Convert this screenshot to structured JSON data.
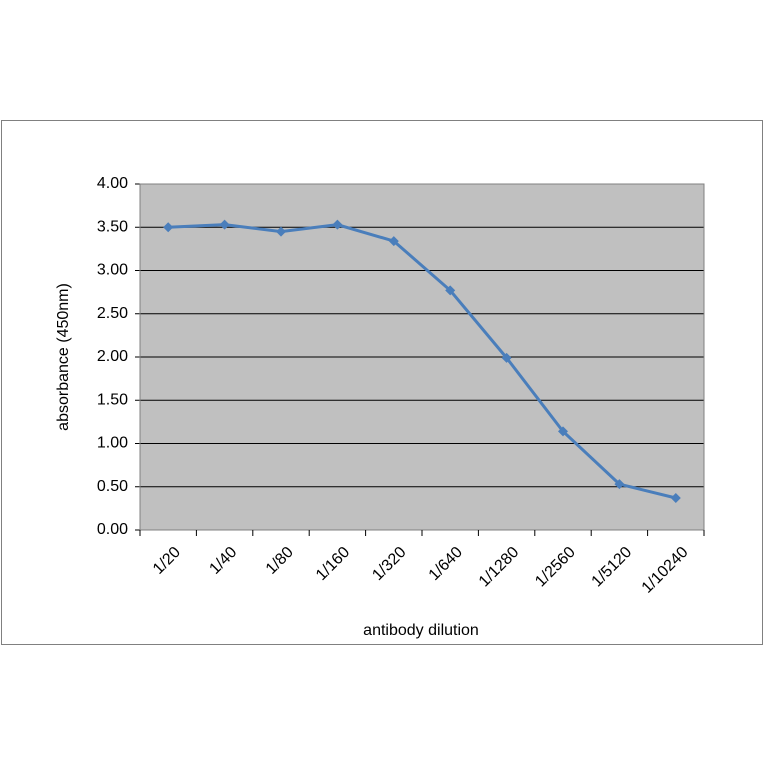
{
  "chart_data": {
    "type": "line",
    "x_label": "antibody dilution",
    "y_label": "absorbance (450nm)",
    "categories": [
      "1/20",
      "1/40",
      "1/80",
      "1/160",
      "1/320",
      "1/640",
      "1/1280",
      "1/2560",
      "1/5120",
      "1/10240"
    ],
    "series": [
      {
        "name": "absorbance",
        "color": "#4a7ebb",
        "values": [
          3.5,
          3.53,
          3.45,
          3.53,
          3.34,
          2.77,
          1.99,
          1.14,
          0.53,
          0.37
        ]
      }
    ],
    "ylim": [
      0,
      4
    ],
    "yticks": [
      {
        "value": 0,
        "label": "0.00"
      },
      {
        "value": 0.5,
        "label": "0.50"
      },
      {
        "value": 1,
        "label": "1.00"
      },
      {
        "value": 1.5,
        "label": "1.50"
      },
      {
        "value": 2,
        "label": "2.00"
      },
      {
        "value": 2.5,
        "label": "2.50"
      },
      {
        "value": 3,
        "label": "3.00"
      },
      {
        "value": 3.5,
        "label": "3.50"
      },
      {
        "value": 4,
        "label": "4.00"
      }
    ],
    "grid": true,
    "plot_background": "#c0c0c0"
  }
}
